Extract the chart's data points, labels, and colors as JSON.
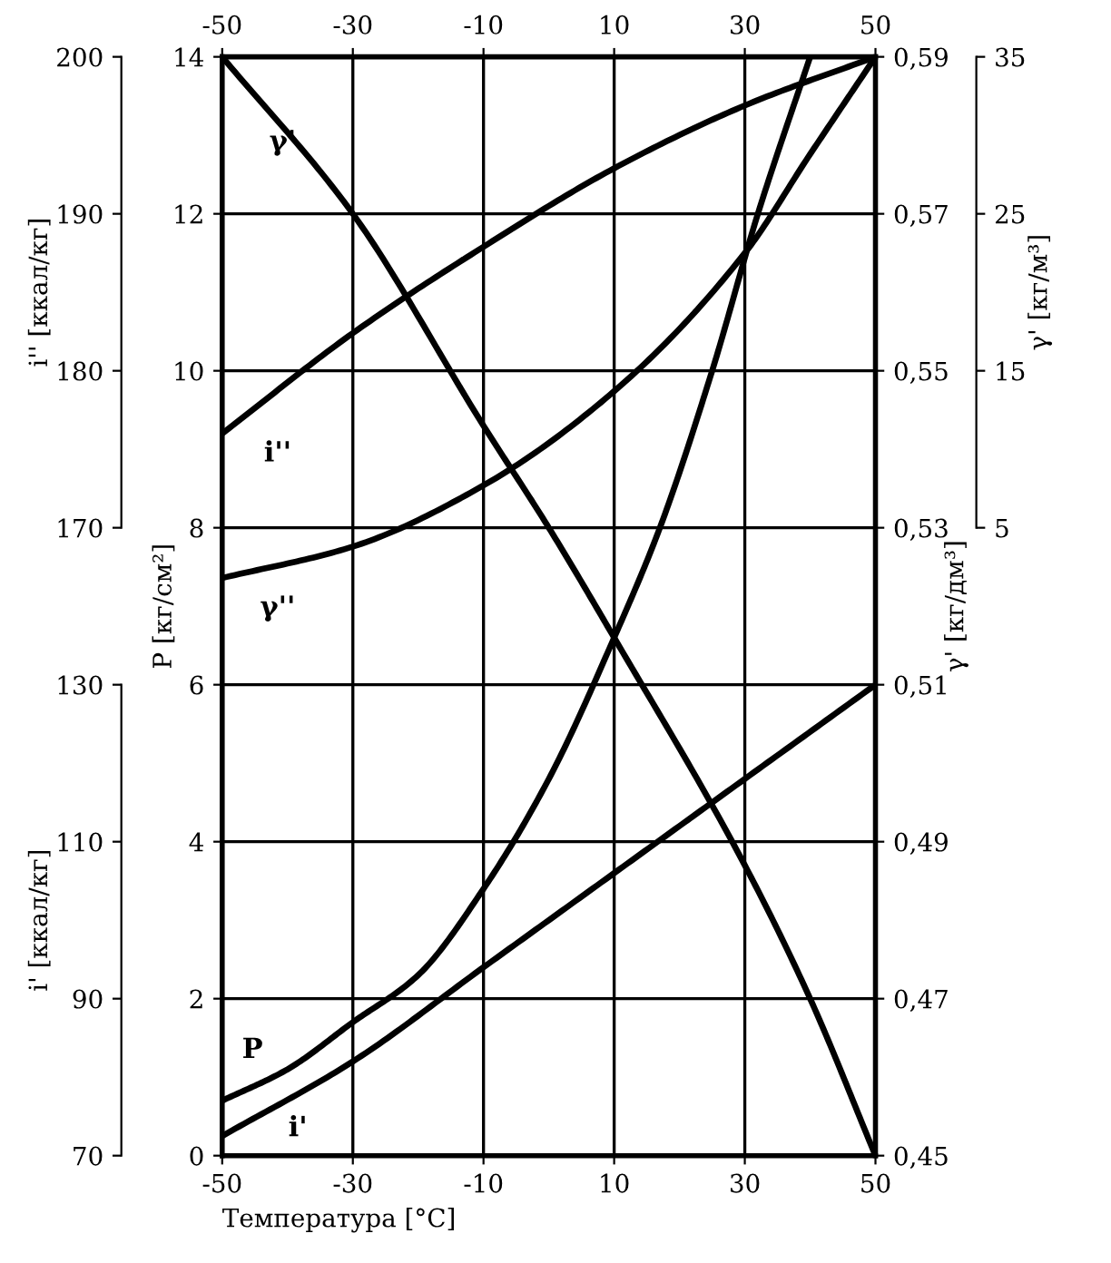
{
  "chart_data": [
    {
      "type": "line",
      "xlabel": "Температура [°C]",
      "grid": true,
      "xlim": [
        -50,
        50
      ],
      "xticks": [
        -50,
        -30,
        -10,
        10,
        30,
        50
      ],
      "x2lim": [
        -50,
        50
      ],
      "x2ticks": [
        -50,
        -30,
        -10,
        10,
        30,
        50
      ],
      "ylim": [
        0,
        14
      ],
      "yticks": [
        0,
        2,
        4,
        6,
        8,
        10,
        12,
        14
      ],
      "ylabel": "P [кг/см²]",
      "y2lim": [
        0.45,
        0.59
      ],
      "y2ticks": [
        {
          "value": 0.45,
          "label": "0,45"
        },
        {
          "value": 0.47,
          "label": "0,47"
        },
        {
          "value": 0.49,
          "label": "0,49"
        },
        {
          "value": 0.51,
          "label": "0,51"
        },
        {
          "value": 0.53,
          "label": "0,53"
        },
        {
          "value": 0.55,
          "label": "0,55"
        },
        {
          "value": 0.57,
          "label": "0,57"
        },
        {
          "value": 0.59,
          "label": "0,59"
        }
      ],
      "y2label": "γ' [кг/дм³]",
      "y3lim": [
        70,
        210
      ],
      "y3ticks": [
        70,
        90,
        110,
        130
      ],
      "y3label": "i' [ккал/кг]",
      "series": [
        {
          "name": "γ'",
          "color": "#000000",
          "axis": "y2",
          "x": [
            -50,
            -30,
            -10,
            0,
            10,
            30,
            40,
            50
          ],
          "values": [
            0.59,
            0.57,
            0.543,
            0.53,
            0.516,
            0.487,
            0.47,
            0.45
          ]
        },
        {
          "name": "P",
          "color": "#000000",
          "x": [
            -50,
            -40,
            -30,
            -20,
            -10,
            0,
            10,
            17,
            25,
            32,
            40
          ],
          "values": [
            0.7,
            1.1,
            1.7,
            2.3,
            3.4,
            4.8,
            6.6,
            8,
            10,
            12,
            14
          ]
        },
        {
          "name": "i'",
          "color": "#000000",
          "axis": "y3",
          "x": [
            -50,
            -30,
            -10,
            10,
            30,
            50
          ],
          "values": [
            72.5,
            82,
            94,
            106,
            118,
            130
          ]
        }
      ]
    },
    {
      "type": "line",
      "tick_labels": "y",
      "xlim": [
        -50,
        50
      ],
      "ylim": [
        130,
        200
      ],
      "yticks": [
        170,
        180,
        190,
        200
      ],
      "ylabel": "i'' [ккал/кг]",
      "y2lim": [
        -35,
        35
      ],
      "y2ticks": [
        5,
        15,
        25,
        35
      ],
      "y2label": "γ' [кг/м³]",
      "series": [
        {
          "name": "i''",
          "color": "#000000",
          "x": [
            -50,
            -30,
            -10,
            10,
            30,
            50
          ],
          "values": [
            176.0,
            182.4,
            187.9,
            192.9,
            196.9,
            200
          ]
        },
        {
          "name": "γ''",
          "color": "#000000",
          "axis": "y2",
          "x": [
            -50,
            -30,
            -10,
            10,
            30,
            40,
            50
          ],
          "values": [
            1.8,
            3.8,
            7.7,
            13.7,
            22.5,
            28.8,
            35
          ]
        }
      ]
    }
  ]
}
